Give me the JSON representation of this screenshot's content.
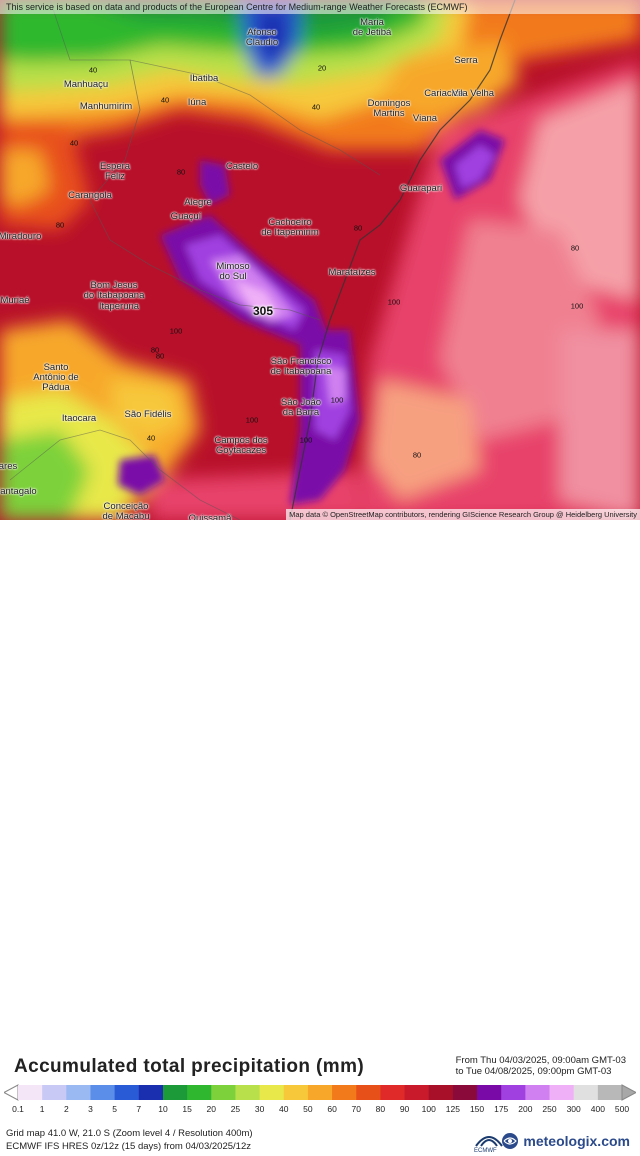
{
  "map": {
    "banner": "This service is based on data and products of the European Centre for Medium-range Weather Forecasts (ECMWF)",
    "attribution": "Map data © OpenStreetMap contributors, rendering GIScience Research Group @ Heidelberg University",
    "max_value": "305",
    "places": [
      {
        "name": "Afonso Cláudio",
        "lines": [
          "Afonso",
          "Cláudio"
        ]
      },
      {
        "name": "Maria de Jetibá",
        "lines": [
          "Maria",
          "de Jetibá"
        ]
      },
      {
        "name": "Serra",
        "lines": [
          "Serra"
        ]
      },
      {
        "name": "Manhuaçu",
        "lines": [
          "Manhuaçu"
        ]
      },
      {
        "name": "Manhumirim",
        "lines": [
          "Manhumirim"
        ]
      },
      {
        "name": "Ibatiba",
        "lines": [
          "Ibatiba"
        ]
      },
      {
        "name": "Iúna",
        "lines": [
          "Iúna"
        ]
      },
      {
        "name": "Cariacica",
        "lines": [
          "Cariacica"
        ]
      },
      {
        "name": "Vila Velha",
        "lines": [
          "Vila Velha"
        ]
      },
      {
        "name": "Domingos Martins",
        "lines": [
          "Domingos",
          "Martins"
        ]
      },
      {
        "name": "Viana",
        "lines": [
          "Viana"
        ]
      },
      {
        "name": "Espera Feliz",
        "lines": [
          "Espera",
          "Feliz"
        ]
      },
      {
        "name": "Carangola",
        "lines": [
          "Carangola"
        ]
      },
      {
        "name": "Castelo",
        "lines": [
          "Castelo"
        ]
      },
      {
        "name": "Guarapari",
        "lines": [
          "Guarapari"
        ]
      },
      {
        "name": "Alegre",
        "lines": [
          "Alegre"
        ]
      },
      {
        "name": "Guaçuí",
        "lines": [
          "Guaçuí"
        ]
      },
      {
        "name": "Cachoeiro de Itapemirim",
        "lines": [
          "Cachoeiro",
          "de Itapemirim"
        ]
      },
      {
        "name": "Miradouro",
        "lines": [
          "Miradouro"
        ]
      },
      {
        "name": "Mimoso do Sul",
        "lines": [
          "Mimoso",
          "do Sul"
        ]
      },
      {
        "name": "Marataízes",
        "lines": [
          "Marataízes"
        ]
      },
      {
        "name": "Bom Jesus do Itabapoana",
        "lines": [
          "Bom Jesus",
          "do Itabapoana"
        ]
      },
      {
        "name": "Muriaé",
        "lines": [
          "Muriaé"
        ]
      },
      {
        "name": "Itaperuna",
        "lines": [
          "Itaperuna"
        ]
      },
      {
        "name": "São Francisco de Itabapoana",
        "lines": [
          "São Francisco",
          "de Itabapoana"
        ]
      },
      {
        "name": "Santo Antônio de Pádua",
        "lines": [
          "Santo",
          "Antônio de",
          "Pádua"
        ]
      },
      {
        "name": "São João da Barra",
        "lines": [
          "São João",
          "da Barra"
        ]
      },
      {
        "name": "Itaocara",
        "lines": [
          "Itaocara"
        ]
      },
      {
        "name": "São Fidélis",
        "lines": [
          "São Fidélis"
        ]
      },
      {
        "name": "Campos dos Goytacazes",
        "lines": [
          "Campos dos",
          "Goytacazes"
        ]
      },
      {
        "name": "Cantagalo",
        "lines": [
          "Cantagalo"
        ]
      },
      {
        "name": "Conceição de Macabu",
        "lines": [
          "Conceição",
          "de Macabu"
        ]
      },
      {
        "name": "Quissamã",
        "lines": [
          "Quissamã"
        ]
      },
      {
        "name": "Ares",
        "lines": [
          "ares"
        ]
      }
    ],
    "contour_labels": [
      "40",
      "40",
      "40",
      "20",
      "40",
      "80",
      "80",
      "80",
      "100",
      "100",
      "100",
      "80",
      "80",
      "40",
      "80",
      "80",
      "100",
      "100",
      "100"
    ]
  },
  "legend": {
    "title": "Accumulated total precipitation (mm)",
    "period_from": "From Thu 04/03/2025, 09:00am GMT-03",
    "period_to": "to Tue 04/08/2025, 09:00pm GMT-03",
    "ticks": [
      "0.1",
      "1",
      "2",
      "3",
      "5",
      "7",
      "10",
      "15",
      "20",
      "25",
      "30",
      "40",
      "50",
      "60",
      "70",
      "80",
      "90",
      "100",
      "125",
      "150",
      "175",
      "200",
      "250",
      "300",
      "400",
      "500"
    ],
    "colors": [
      "#f4e6f7",
      "#c9c9f5",
      "#9ab8f2",
      "#5a8ee8",
      "#2a5bd7",
      "#1a2fb0",
      "#1c9a3a",
      "#2fb82f",
      "#7dd23b",
      "#b8e04a",
      "#e8e84a",
      "#f7c83a",
      "#f7a82a",
      "#f27a1a",
      "#e8501a",
      "#e02a2a",
      "#c81a2a",
      "#a8102a",
      "#8a0a3a",
      "#7a0aa8",
      "#a040e0",
      "#d080f0",
      "#f0b0f8",
      "#e0e0e0",
      "#b8b8b8"
    ]
  },
  "grid": {
    "line1": "Grid map 41.0 W, 21.0 S (Zoom level 4 / Resolution 400m)",
    "line2": "ECMWF IFS HRES 0z/12z (15 days) from 04/03/2025/12z"
  },
  "branding": {
    "ecmwf": "ECMWF",
    "site": "meteologix.com"
  }
}
